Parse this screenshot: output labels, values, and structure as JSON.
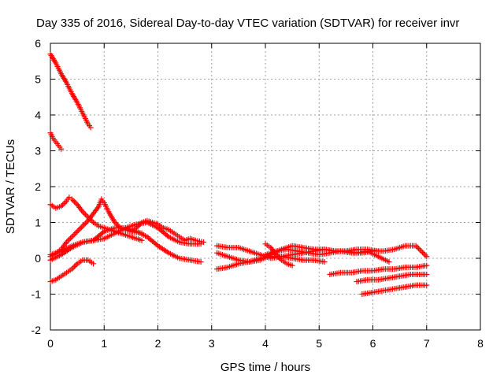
{
  "chart_data": {
    "type": "scatter",
    "title": "Day 335 of 2016, Sidereal Day-to-day VTEC variation (SDTVAR) for receiver invr",
    "xlabel": "GPS time / hours",
    "ylabel": "SDTVAR / TECUs",
    "xlim": [
      0,
      8
    ],
    "ylim": [
      -2,
      6
    ],
    "xticks": [
      "0",
      "1",
      "2",
      "3",
      "4",
      "5",
      "6",
      "7",
      "8"
    ],
    "yticks": [
      "-2",
      "-1",
      "0",
      "1",
      "2",
      "3",
      "4",
      "5",
      "6"
    ],
    "grid": true,
    "marker": "plus",
    "color": "#ff0000",
    "series": [
      {
        "x": [
          0.0,
          0.1,
          0.2,
          0.3,
          0.4,
          0.5,
          0.6,
          0.7,
          0.75
        ],
        "y": [
          5.7,
          5.45,
          5.15,
          4.9,
          4.6,
          4.35,
          4.05,
          3.75,
          3.65
        ]
      },
      {
        "x": [
          0.0,
          0.05,
          0.1,
          0.15,
          0.2
        ],
        "y": [
          3.5,
          3.35,
          3.25,
          3.15,
          3.05
        ]
      },
      {
        "x": [
          0.0,
          0.1,
          0.2,
          0.3,
          0.35,
          0.4,
          0.5,
          0.6,
          0.7,
          0.8,
          0.9,
          1.0,
          1.1,
          1.2,
          1.3,
          1.4,
          1.5,
          1.6,
          1.7
        ],
        "y": [
          1.5,
          1.4,
          1.45,
          1.6,
          1.7,
          1.65,
          1.5,
          1.3,
          1.15,
          1.0,
          0.9,
          0.85,
          0.8,
          0.75,
          0.7,
          0.65,
          0.6,
          0.55,
          0.5
        ]
      },
      {
        "x": [
          0.0,
          0.1,
          0.2,
          0.3,
          0.4,
          0.5,
          0.6,
          0.7,
          0.8,
          0.9,
          0.95,
          1.0,
          1.1,
          1.2,
          1.3,
          1.5,
          1.7
        ],
        "y": [
          0.1,
          0.15,
          0.25,
          0.45,
          0.6,
          0.75,
          0.9,
          1.05,
          1.25,
          1.45,
          1.65,
          1.55,
          1.25,
          1.0,
          0.85,
          0.75,
          0.7
        ]
      },
      {
        "x": [
          0.0,
          0.2,
          0.4,
          0.6,
          0.8,
          1.0,
          1.2,
          1.4,
          1.6,
          1.8,
          2.0,
          2.2,
          2.4,
          2.6,
          2.8
        ],
        "y": [
          0.05,
          0.2,
          0.35,
          0.45,
          0.5,
          0.55,
          0.7,
          0.85,
          0.95,
          1.0,
          0.85,
          0.6,
          0.45,
          0.4,
          0.4
        ]
      },
      {
        "x": [
          0.0,
          0.2,
          0.4,
          0.6,
          0.8,
          1.0,
          1.2,
          1.4,
          1.6,
          1.8,
          2.0,
          2.2,
          2.4,
          2.6,
          2.8
        ],
        "y": [
          -0.05,
          0.1,
          0.3,
          0.45,
          0.5,
          0.75,
          0.85,
          0.85,
          0.75,
          0.6,
          0.35,
          0.15,
          0.0,
          -0.05,
          -0.1
        ]
      },
      {
        "x": [
          0.0,
          0.1,
          0.2,
          0.3,
          0.4,
          0.5,
          0.6,
          0.7,
          0.8
        ],
        "y": [
          -0.65,
          -0.6,
          -0.5,
          -0.4,
          -0.3,
          -0.15,
          -0.05,
          -0.05,
          -0.15
        ]
      },
      {
        "x": [
          1.5,
          1.6,
          1.7,
          1.8,
          1.9,
          2.0,
          2.1,
          2.2,
          2.3,
          2.4,
          2.5,
          2.6,
          2.7,
          2.85
        ],
        "y": [
          0.75,
          0.85,
          1.0,
          1.05,
          1.0,
          0.95,
          0.85,
          0.8,
          0.7,
          0.6,
          0.5,
          0.55,
          0.5,
          0.45
        ]
      },
      {
        "x": [
          3.1,
          3.3,
          3.5,
          3.7,
          3.9,
          4.1,
          4.3,
          4.5,
          4.7,
          4.9,
          5.1,
          5.3,
          5.5,
          5.7,
          5.9,
          6.1
        ],
        "y": [
          0.35,
          0.3,
          0.3,
          0.2,
          0.1,
          0.0,
          0.05,
          0.1,
          0.15,
          0.2,
          0.25,
          0.2,
          0.2,
          0.25,
          0.25,
          0.2
        ]
      },
      {
        "x": [
          3.1,
          3.3,
          3.5,
          3.7,
          3.9,
          4.1,
          4.3,
          4.5,
          4.7,
          4.9,
          5.1,
          5.3,
          5.5,
          5.7,
          5.9,
          6.1,
          6.3
        ],
        "y": [
          0.15,
          0.05,
          -0.05,
          -0.1,
          -0.05,
          0.1,
          0.25,
          0.35,
          0.3,
          0.25,
          0.25,
          0.2,
          0.2,
          0.15,
          0.2,
          0.05,
          -0.1
        ]
      },
      {
        "x": [
          3.1,
          3.3,
          3.5,
          3.7,
          3.9,
          4.1,
          4.3,
          4.5,
          4.7,
          4.9,
          5.1
        ],
        "y": [
          -0.3,
          -0.25,
          -0.15,
          -0.1,
          0.0,
          0.05,
          0.05,
          0.0,
          -0.05,
          -0.05,
          -0.1
        ]
      },
      {
        "x": [
          4.0,
          4.2,
          4.4,
          4.6,
          4.8,
          5.0,
          5.2,
          5.4,
          5.6,
          5.8,
          6.0,
          6.2,
          6.4,
          6.6,
          6.8,
          7.0
        ],
        "y": [
          0.1,
          0.2,
          0.25,
          0.2,
          0.15,
          0.1,
          0.15,
          0.2,
          0.15,
          0.15,
          0.2,
          0.2,
          0.25,
          0.35,
          0.35,
          0.05
        ]
      },
      {
        "x": [
          4.0,
          4.1,
          4.2,
          4.3,
          4.4,
          4.5
        ],
        "y": [
          0.4,
          0.3,
          0.1,
          -0.05,
          -0.15,
          -0.2
        ]
      },
      {
        "x": [
          5.2,
          5.4,
          5.6,
          5.8,
          6.0,
          6.2,
          6.4,
          6.6,
          6.8,
          7.0
        ],
        "y": [
          -0.45,
          -0.4,
          -0.4,
          -0.35,
          -0.35,
          -0.3,
          -0.3,
          -0.25,
          -0.25,
          -0.2
        ]
      },
      {
        "x": [
          5.7,
          5.9,
          6.1,
          6.3,
          6.5,
          6.7,
          6.9,
          7.0
        ],
        "y": [
          -0.65,
          -0.6,
          -0.6,
          -0.55,
          -0.5,
          -0.45,
          -0.45,
          -0.45
        ]
      },
      {
        "x": [
          5.8,
          6.0,
          6.2,
          6.4,
          6.6,
          6.8,
          7.0
        ],
        "y": [
          -1.0,
          -0.95,
          -0.9,
          -0.85,
          -0.8,
          -0.75,
          -0.75
        ]
      }
    ]
  }
}
